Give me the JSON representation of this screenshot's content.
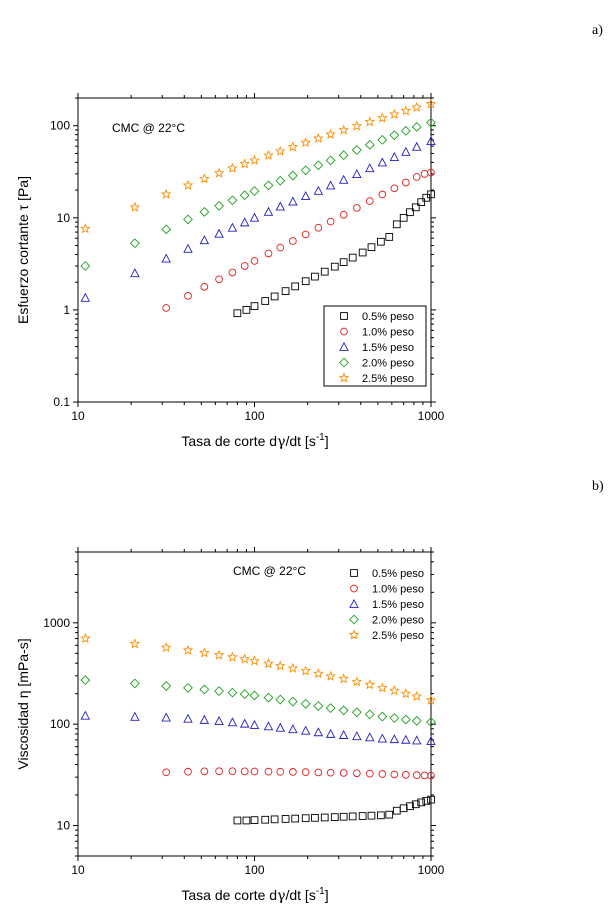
{
  "chart_data": [
    {
      "type": "scatter",
      "panel_label": "a)",
      "annotation": "CMC @ 22°C",
      "xlabel_main": "Tasa de corte d",
      "xlabel_sym": "γ",
      "xlabel_tail": "/dt [s",
      "xlabel_sup": "-1",
      "xlabel_end": "]",
      "ylabel": "Esfuerzo cortante τ [Pa]",
      "xscale": "log",
      "yscale": "log",
      "xlim": [
        10,
        1000
      ],
      "ylim": [
        0.1,
        200
      ],
      "xticks": [
        10,
        100,
        1000
      ],
      "xtick_labels": [
        "10",
        "100",
        "1000"
      ],
      "yticks": [
        0.1,
        1,
        10,
        100
      ],
      "ytick_labels": [
        "0.1",
        "1",
        "10",
        "100"
      ],
      "legend_position": "bottom-right",
      "series": [
        {
          "name": "0.5% peso",
          "marker": "square",
          "color": "#000000",
          "x": [
            80,
            90,
            100,
            115,
            130,
            150,
            170,
            195,
            220,
            250,
            285,
            320,
            360,
            410,
            460,
            520,
            580,
            640,
            700,
            760,
            820,
            880,
            940,
            1000
          ],
          "y": [
            0.92,
            1.0,
            1.1,
            1.25,
            1.4,
            1.6,
            1.8,
            2.05,
            2.3,
            2.6,
            2.95,
            3.3,
            3.7,
            4.2,
            4.8,
            5.5,
            6.2,
            8.5,
            10.0,
            11.5,
            13.0,
            14.8,
            16.5,
            18.0
          ]
        },
        {
          "name": "1.0% peso",
          "marker": "circle",
          "color": "#e02020",
          "x": [
            31.6,
            42,
            52,
            63,
            75,
            88,
            100,
            120,
            140,
            165,
            195,
            230,
            270,
            320,
            380,
            450,
            530,
            620,
            720,
            830,
            920,
            1000
          ],
          "y": [
            1.05,
            1.42,
            1.78,
            2.15,
            2.55,
            3.0,
            3.4,
            4.1,
            4.75,
            5.6,
            6.6,
            7.8,
            9.1,
            10.8,
            12.8,
            15.2,
            17.9,
            20.9,
            24.2,
            27.8,
            30.0,
            31.0
          ]
        },
        {
          "name": "1.5% peso",
          "marker": "triangle",
          "color": "#2020c0",
          "x": [
            11,
            21,
            31.6,
            42,
            52,
            63,
            75,
            88,
            100,
            120,
            140,
            165,
            195,
            230,
            270,
            320,
            380,
            450,
            530,
            620,
            720,
            830,
            1000
          ],
          "y": [
            1.35,
            2.5,
            3.6,
            4.6,
            5.7,
            6.7,
            7.8,
            8.9,
            10.0,
            11.6,
            13.2,
            15.0,
            17.2,
            19.6,
            22.4,
            25.8,
            29.8,
            34.5,
            39.8,
            45.6,
            52.0,
            58.8,
            68.0
          ]
        },
        {
          "name": "2.0% peso",
          "marker": "diamond",
          "color": "#20a020",
          "x": [
            11,
            21,
            31.6,
            42,
            52,
            63,
            75,
            88,
            100,
            120,
            140,
            165,
            195,
            230,
            270,
            320,
            380,
            450,
            530,
            620,
            720,
            830,
            1000
          ],
          "y": [
            3.0,
            5.3,
            7.5,
            9.6,
            11.6,
            13.5,
            15.5,
            17.6,
            19.5,
            22.5,
            25.3,
            28.8,
            32.8,
            37.2,
            42.0,
            47.8,
            54.5,
            62.0,
            70.2,
            79.0,
            88.0,
            97.0,
            108.0
          ]
        },
        {
          "name": "2.5% peso",
          "marker": "star",
          "color": "#ff8c00",
          "x": [
            11,
            21,
            31.6,
            42,
            52,
            63,
            75,
            88,
            100,
            120,
            140,
            165,
            195,
            230,
            270,
            320,
            380,
            450,
            530,
            620,
            720,
            830,
            1000
          ],
          "y": [
            7.6,
            13.0,
            18.0,
            22.5,
            26.5,
            30.5,
            34.5,
            38.5,
            42.0,
            47.5,
            52.8,
            58.8,
            65.5,
            72.8,
            80.5,
            89.5,
            99.0,
            110.0,
            121.0,
            133.0,
            145.0,
            158.0,
            172.0
          ]
        }
      ]
    },
    {
      "type": "scatter",
      "panel_label": "b)",
      "annotation": "CMC @ 22°C",
      "xlabel_main": "Tasa de corte d",
      "xlabel_sym": "γ",
      "xlabel_tail": "/dt [s",
      "xlabel_sup": "-1",
      "xlabel_end": "]",
      "ylabel": "Viscosidad η [mPa-s]",
      "xscale": "log",
      "yscale": "log",
      "xlim": [
        10,
        1000
      ],
      "ylim": [
        5,
        5000
      ],
      "xticks": [
        10,
        100,
        1000
      ],
      "xtick_labels": [
        "10",
        "100",
        "1000"
      ],
      "yticks": [
        10,
        100,
        1000
      ],
      "ytick_labels": [
        "10",
        "100",
        "1000"
      ],
      "legend_position": "top-right",
      "series": [
        {
          "name": "0.5% peso",
          "marker": "square",
          "color": "#000000",
          "x": [
            80,
            90,
            100,
            115,
            130,
            150,
            170,
            195,
            220,
            250,
            285,
            320,
            360,
            410,
            460,
            520,
            580,
            640,
            700,
            760,
            820,
            880,
            940,
            1000
          ],
          "y": [
            11.2,
            11.2,
            11.3,
            11.4,
            11.5,
            11.6,
            11.7,
            11.8,
            11.9,
            12.0,
            12.1,
            12.2,
            12.3,
            12.4,
            12.5,
            12.6,
            12.8,
            14.0,
            14.8,
            15.5,
            16.2,
            16.9,
            17.5,
            18.0
          ]
        },
        {
          "name": "1.0% peso",
          "marker": "circle",
          "color": "#e02020",
          "x": [
            31.6,
            42,
            52,
            63,
            75,
            88,
            100,
            120,
            140,
            165,
            195,
            230,
            270,
            320,
            380,
            450,
            530,
            620,
            720,
            830,
            920,
            1000
          ],
          "y": [
            33.5,
            34.0,
            34.2,
            34.3,
            34.3,
            34.2,
            34.1,
            34.0,
            33.9,
            33.8,
            33.6,
            33.4,
            33.2,
            33.0,
            32.8,
            32.5,
            32.2,
            31.9,
            31.6,
            31.4,
            31.2,
            31.0
          ]
        },
        {
          "name": "1.5% peso",
          "marker": "triangle",
          "color": "#2020c0",
          "x": [
            11,
            21,
            31.6,
            42,
            52,
            63,
            75,
            88,
            100,
            120,
            140,
            165,
            195,
            230,
            270,
            320,
            380,
            450,
            530,
            620,
            720,
            830,
            1000
          ],
          "y": [
            121,
            118,
            116,
            113,
            110,
            107,
            104,
            101,
            98,
            95,
            92,
            89,
            86,
            83,
            80,
            78,
            76,
            74,
            72,
            71,
            70,
            69,
            68
          ]
        },
        {
          "name": "2.0% peso",
          "marker": "diamond",
          "color": "#20a020",
          "x": [
            11,
            21,
            31.6,
            42,
            52,
            63,
            75,
            88,
            100,
            120,
            140,
            165,
            195,
            230,
            270,
            320,
            380,
            450,
            530,
            620,
            720,
            830,
            1000
          ],
          "y": [
            272,
            252,
            238,
            228,
            220,
            212,
            205,
            198,
            192,
            183,
            175,
            167,
            159,
            151,
            144,
            137,
            131,
            125,
            119,
            115,
            111,
            108,
            105
          ]
        },
        {
          "name": "2.5% peso",
          "marker": "star",
          "color": "#ff8c00",
          "x": [
            11,
            21,
            31.6,
            42,
            52,
            63,
            75,
            88,
            100,
            120,
            140,
            165,
            195,
            230,
            270,
            320,
            380,
            450,
            530,
            620,
            720,
            830,
            1000
          ],
          "y": [
            700,
            620,
            570,
            535,
            505,
            480,
            458,
            438,
            420,
            395,
            375,
            355,
            335,
            315,
            297,
            280,
            262,
            245,
            228,
            214,
            200,
            188,
            172
          ]
        }
      ]
    }
  ]
}
